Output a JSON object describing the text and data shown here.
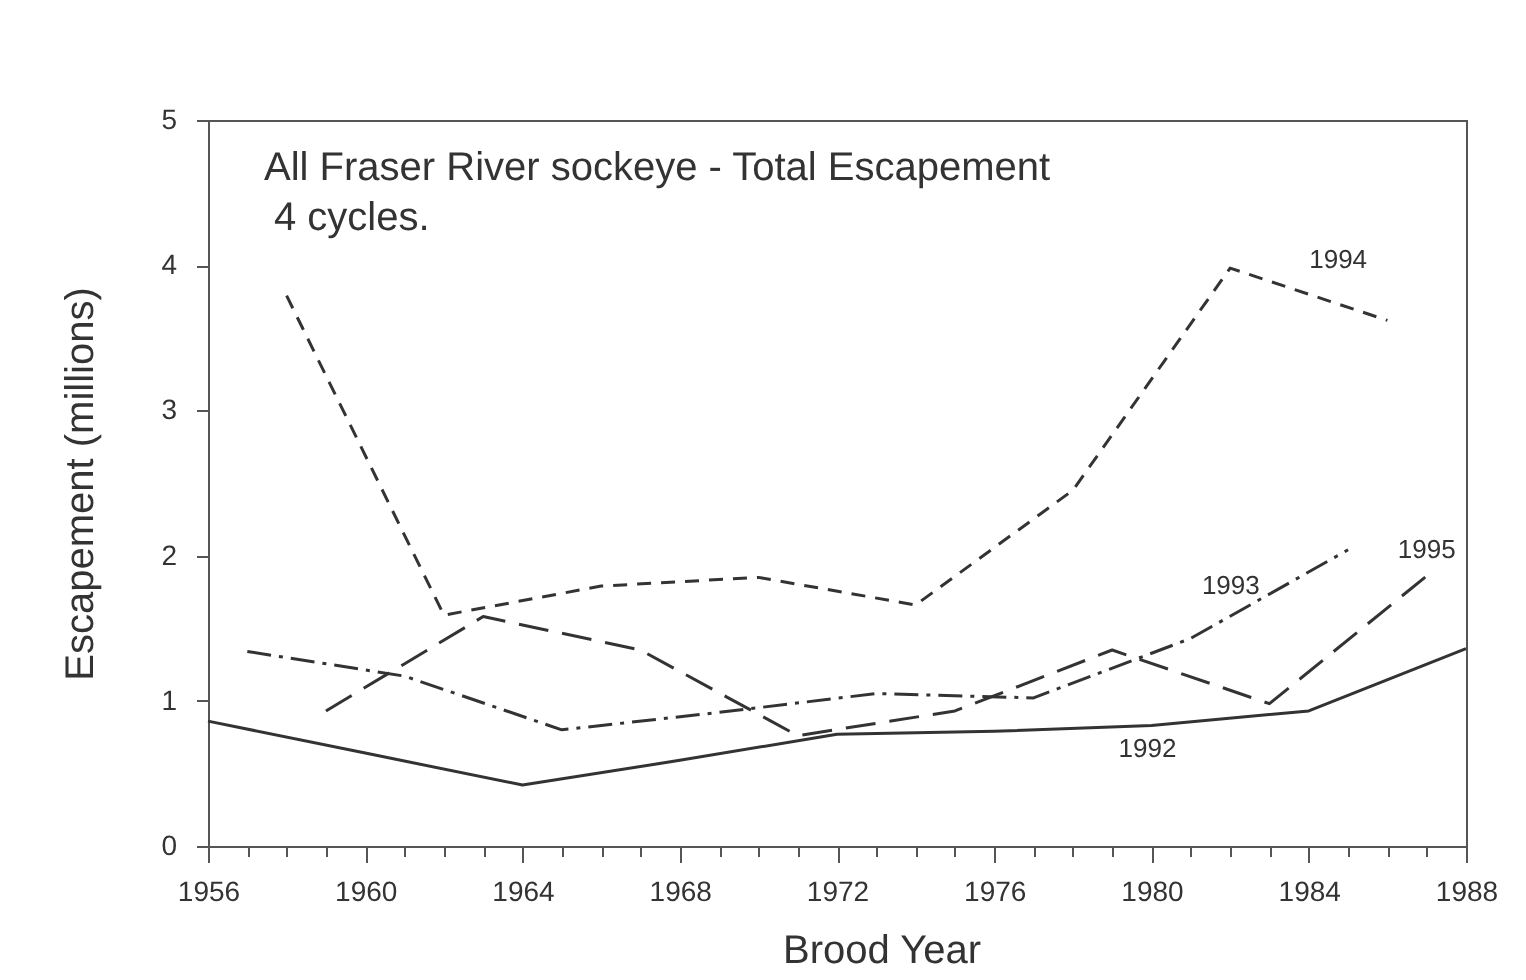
{
  "chart_data": {
    "type": "line",
    "title": "All Fraser River sockeye - Total Escapement",
    "subtitle": "4 cycles.",
    "xlabel": "Brood Year",
    "ylabel": "Escapement (millions)",
    "xlim": [
      1956,
      1988
    ],
    "xticks": [
      1956,
      {
        "value": 1957,
        "label": null
      },
      {
        "value": 1958,
        "label": null
      },
      {
        "value": 1959,
        "label": null
      },
      1960,
      {
        "value": 1961,
        "label": null
      },
      {
        "value": 1962,
        "label": null
      },
      {
        "value": 1963,
        "label": null
      },
      1964,
      {
        "value": 1965,
        "label": null
      },
      {
        "value": 1966,
        "label": null
      },
      {
        "value": 1967,
        "label": null
      },
      1968,
      {
        "value": 1969,
        "label": null
      },
      {
        "value": 1970,
        "label": null
      },
      {
        "value": 1971,
        "label": null
      },
      1972,
      {
        "value": 1973,
        "label": null
      },
      {
        "value": 1974,
        "label": null
      },
      {
        "value": 1975,
        "label": null
      },
      1976,
      {
        "value": 1977,
        "label": null
      },
      {
        "value": 1978,
        "label": null
      },
      {
        "value": 1979,
        "label": null
      },
      1980,
      {
        "value": 1981,
        "label": null
      },
      {
        "value": 1982,
        "label": null
      },
      {
        "value": 1983,
        "label": null
      },
      1984,
      {
        "value": 1985,
        "label": null
      },
      {
        "value": 1986,
        "label": null
      },
      {
        "value": 1987,
        "label": null
      },
      1988
    ],
    "ylim": [
      0,
      5
    ],
    "yticks": [
      0,
      1,
      2,
      3,
      4,
      5
    ],
    "series": [
      {
        "name": "1992",
        "color": "#333333",
        "line_style": "solid",
        "x": [
          1956,
          1960,
          1964,
          1968,
          1972,
          1976,
          1980,
          1984,
          1988
        ],
        "values": [
          0.86,
          0.64,
          0.42,
          0.59,
          0.77,
          0.79,
          0.83,
          0.93,
          1.36
        ]
      },
      {
        "name": "1993",
        "color": "#333333",
        "line_style": "dashdot",
        "x": [
          1957,
          1961,
          1965,
          1969,
          1973,
          1977,
          1981,
          1985
        ],
        "values": [
          1.34,
          1.17,
          0.8,
          0.92,
          1.05,
          1.02,
          1.43,
          2.04
        ]
      },
      {
        "name": "1994",
        "color": "#333333",
        "line_style": "dashed",
        "x": [
          1958,
          1962,
          1966,
          1970,
          1974,
          1978,
          1982,
          1986
        ],
        "values": [
          3.79,
          1.59,
          1.79,
          1.85,
          1.66,
          2.45,
          3.98,
          3.62
        ]
      },
      {
        "name": "1995",
        "color": "#333333",
        "line_style": "longdashed",
        "x": [
          1959,
          1963,
          1967,
          1971,
          1975,
          1979,
          1983,
          1987
        ],
        "values": [
          0.93,
          1.58,
          1.35,
          0.76,
          0.93,
          1.35,
          0.98,
          1.86
        ]
      }
    ]
  }
}
